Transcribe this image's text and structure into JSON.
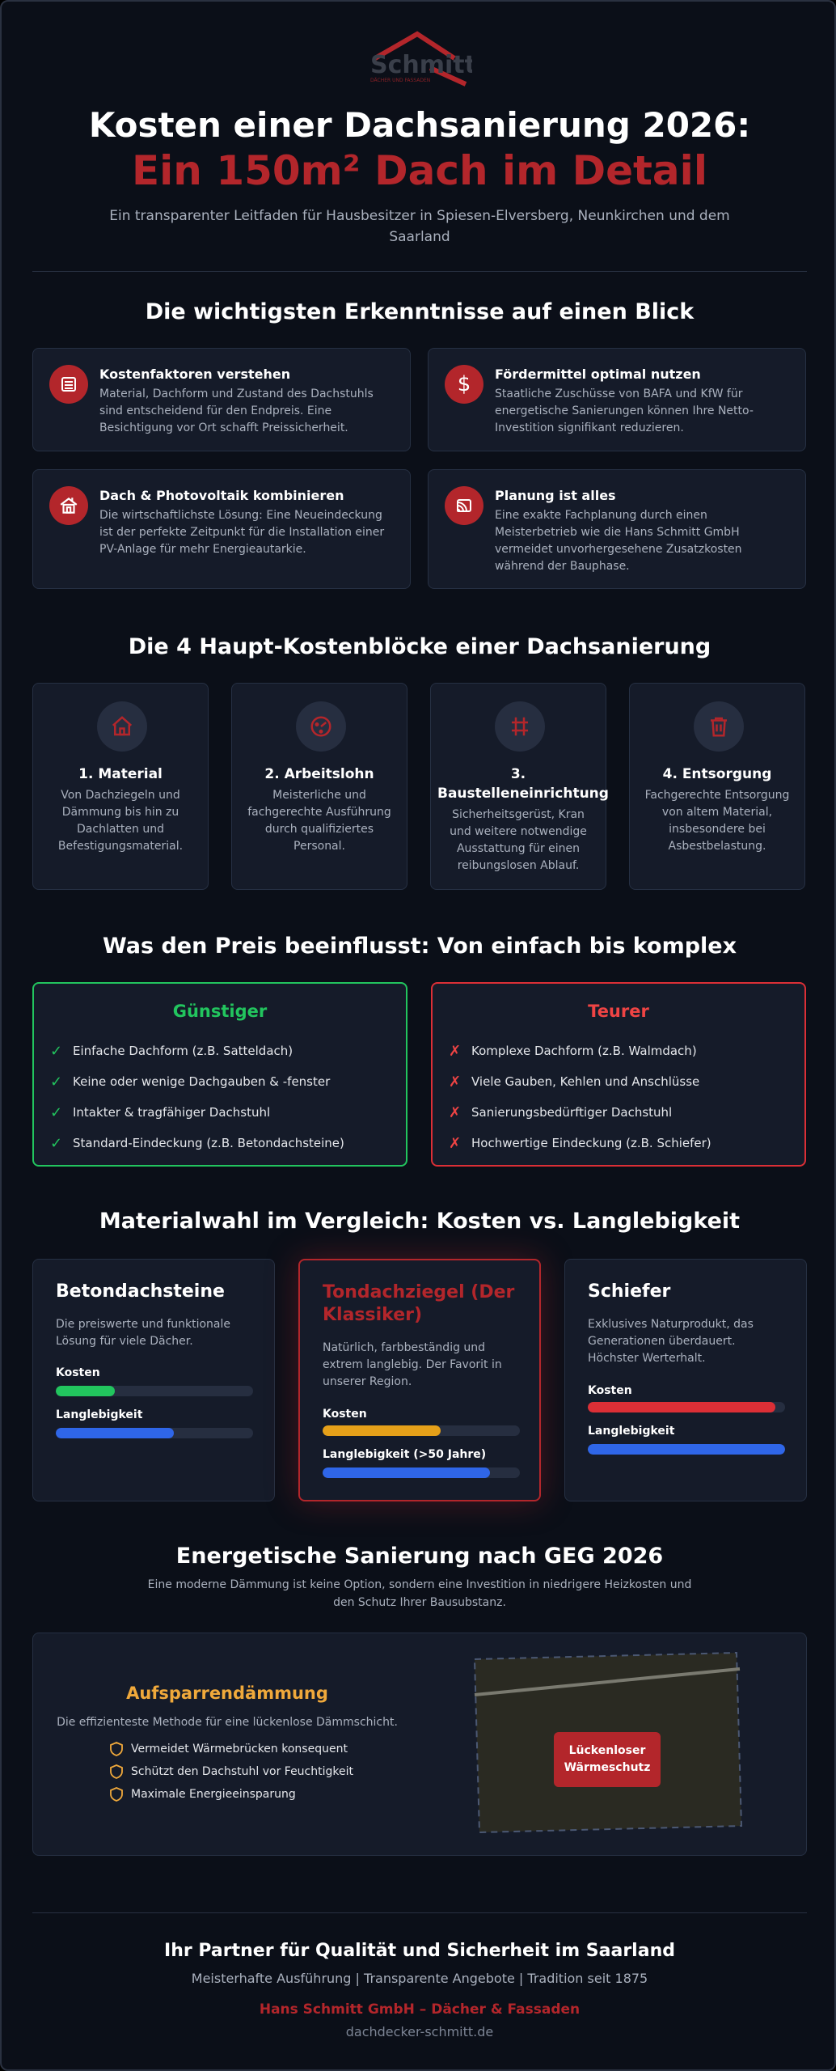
{
  "logo": {
    "name": "Schmitt",
    "tagline": "DÄCHER UND FASSADEN",
    "brand_color": "#b3262b"
  },
  "header": {
    "title_line1": "Kosten einer Dachsanierung 2026:",
    "title_line2": "Ein 150m² Dach im Detail",
    "subtitle": "Ein transparenter Leitfaden für Hausbesitzer in Spiesen-Elversberg, Neunkirchen und dem Saarland"
  },
  "insights": {
    "title": "Die wichtigsten Erkenntnisse auf einen Blick",
    "items": [
      {
        "icon": "list-icon",
        "title": "Kostenfaktoren verstehen",
        "text": "Material, Dachform und Zustand des Dachstuhls sind entscheidend für den Endpreis. Eine Besichtigung vor Ort schafft Preissicherheit."
      },
      {
        "icon": "dollar-icon",
        "title": "Fördermittel optimal nutzen",
        "text": "Staatliche Zuschüsse von BAFA und KfW für energetische Sanierungen können Ihre Netto-Investition signifikant reduzieren."
      },
      {
        "icon": "solar-house-icon",
        "title": "Dach & Photovoltaik kombinieren",
        "text": "Die wirtschaftlichste Lösung: Eine Neueindeckung ist der perfekte Zeitpunkt für die Installation einer PV-Anlage für mehr Energieautarkie."
      },
      {
        "icon": "blueprint-icon",
        "title": "Planung ist alles",
        "text": "Eine exakte Fachplanung durch einen Meisterbetrieb wie die Hans Schmitt GmbH vermeidet unvorhergesehene Zusatzkosten während der Bauphase."
      }
    ]
  },
  "cost_blocks": {
    "title": "Die 4 Haupt-Kostenblöcke einer Dachsanierung",
    "items": [
      {
        "icon": "house-icon",
        "title": "1. Material",
        "text": "Von Dachziegeln und Dämmung bis hin zu Dachlatten und Befestigungsmaterial."
      },
      {
        "icon": "gauge-icon",
        "title": "2. Arbeitslohn",
        "text": "Meisterliche und fachgerechte Ausführung durch qualifiziertes Personal."
      },
      {
        "icon": "scaffold-icon",
        "title": "3. Baustelleneinrichtung",
        "text": "Sicherheitsgerüst, Kran und weitere notwendige Ausstattung für einen reibungslosen Ablauf."
      },
      {
        "icon": "trash-icon",
        "title": "4. Entsorgung",
        "text": "Fachgerechte Entsorgung von altem Material, insbesondere bei Asbestbelastung."
      }
    ]
  },
  "price_factors": {
    "title": "Was den Preis beeinflusst: Von einfach bis komplex",
    "cheaper": {
      "title": "Günstiger",
      "color": "#22c55e",
      "items": [
        "Einfache Dachform (z.B. Satteldach)",
        "Keine oder wenige Dachgauben & -fenster",
        "Intakter & tragfähiger Dachstuhl",
        "Standard-Eindeckung (z.B. Betondachsteine)"
      ]
    },
    "pricier": {
      "title": "Teurer",
      "color": "#ef4444",
      "items": [
        "Komplexe Dachform (z.B. Walmdach)",
        "Viele Gauben, Kehlen und Anschlüsse",
        "Sanierungsbedürftiger Dachstuhl",
        "Hochwertige Eindeckung (z.B. Schiefer)"
      ]
    }
  },
  "materials": {
    "title": "Materialwahl im Vergleich: Kosten vs. Langlebigkeit",
    "items": [
      {
        "name": "Betondachsteine",
        "desc": "Die preiswerte und funktionale Lösung für viele Dächer.",
        "cost_label": "Kosten",
        "cost": 0.3,
        "cost_color": "#22c55e",
        "life_label": "Langlebigkeit",
        "life": 0.6,
        "life_color": "#2f66e8"
      },
      {
        "name": "Tondachziegel (Der Klassiker)",
        "desc": "Natürlich, farbbeständig und extrem langlebig. Der Favorit in unserer Region.",
        "cost_label": "Kosten",
        "cost": 0.6,
        "cost_color": "#e5a019",
        "life_label": "Langlebigkeit (>50 Jahre)",
        "life": 0.85,
        "life_color": "#2f66e8"
      },
      {
        "name": "Schiefer",
        "desc": "Exklusives Naturprodukt, das Generationen überdauert. Höchster Werterhalt.",
        "cost_label": "Kosten",
        "cost": 0.95,
        "cost_color": "#dc2f36",
        "life_label": "Langlebigkeit",
        "life": 1.0,
        "life_color": "#2f66e8"
      }
    ]
  },
  "geg": {
    "title": "Energetische Sanierung nach GEG 2026",
    "subtitle": "Eine moderne Dämmung ist keine Option, sondern eine Investition in niedrigere Heizkosten und den Schutz Ihrer Bausubstanz.",
    "method_title": "Aufsparrendämmung",
    "method_desc": "Die effizienteste Methode für eine lückenlose Dämmschicht.",
    "benefits": [
      "Vermeidet Wärmebrücken konsequent",
      "Schützt den Dachstuhl vor Feuchtigkeit",
      "Maximale Energieeinsparung"
    ],
    "badge_line1": "Lückenloser",
    "badge_line2": "Wärmeschutz",
    "accent": "#f0a93b"
  },
  "footer": {
    "title": "Ihr Partner für Qualität und Sicherheit im Saarland",
    "subtitle": "Meisterhafte Ausführung | Transparente Angebote | Tradition seit 1875",
    "company": "Hans Schmitt GmbH – Dächer & Fassaden",
    "url": "dachdecker-schmitt.de"
  }
}
